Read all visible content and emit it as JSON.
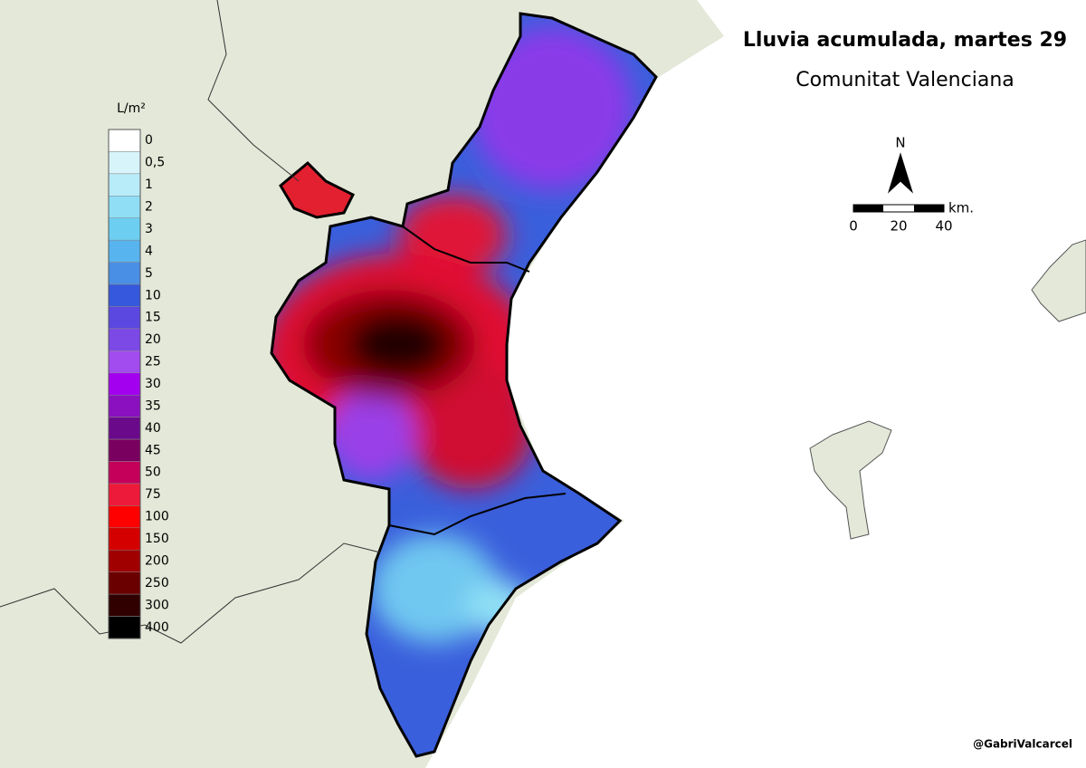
{
  "header": {
    "title": "Lluvia acumulada, martes 29",
    "subtitle": "Comunitat Valenciana"
  },
  "legend": {
    "unit": "L/m²",
    "items": [
      {
        "label": "0",
        "color": "#ffffff"
      },
      {
        "label": "0,5",
        "color": "#d8f4fb"
      },
      {
        "label": "1",
        "color": "#b8ecf8"
      },
      {
        "label": "2",
        "color": "#8fdef5"
      },
      {
        "label": "3",
        "color": "#6ccff2"
      },
      {
        "label": "4",
        "color": "#58b4ee"
      },
      {
        "label": "5",
        "color": "#4a8fe6"
      },
      {
        "label": "10",
        "color": "#3558dc"
      },
      {
        "label": "15",
        "color": "#5a48e0"
      },
      {
        "label": "20",
        "color": "#7c48e6"
      },
      {
        "label": "25",
        "color": "#a24cf0"
      },
      {
        "label": "30",
        "color": "#a400f0"
      },
      {
        "label": "35",
        "color": "#8a10c0"
      },
      {
        "label": "40",
        "color": "#6a0a8a"
      },
      {
        "label": "45",
        "color": "#7a0060"
      },
      {
        "label": "50",
        "color": "#c4005a"
      },
      {
        "label": "75",
        "color": "#ee1a3a"
      },
      {
        "label": "100",
        "color": "#ff0000"
      },
      {
        "label": "150",
        "color": "#d40000"
      },
      {
        "label": "200",
        "color": "#a00000"
      },
      {
        "label": "250",
        "color": "#6a0000"
      },
      {
        "label": "300",
        "color": "#300000"
      },
      {
        "label": "400",
        "color": "#000000"
      }
    ]
  },
  "north": "N",
  "scale_bar": {
    "labels": [
      "0",
      "20",
      "40"
    ],
    "unit": "km."
  },
  "credit": "@GabriValcarcel"
}
